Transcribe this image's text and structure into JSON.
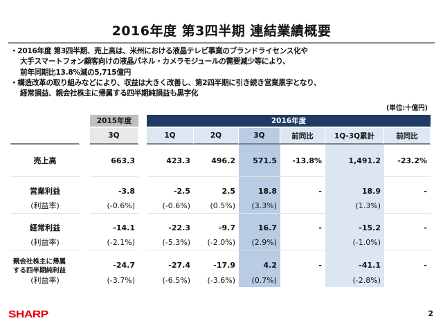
{
  "title": "2016年度 第3四半期 連結業績概要",
  "bullets": [
    [
      "・2016年度 第3四半期、売上高は、米州における液晶テレビ事業のブランドライセンス化や",
      "大手スマートフォン顧客向けの液晶パネル・カメラモジュールの需要減少等により、",
      "前年同期比13.8%減の5,715億円"
    ],
    [
      "・構造改革の取り組みなどにより、収益は大きく改善し、第2四半期に引き続き営業黒字となり、",
      "経常損益、親会社株主に帰属する四半期純損益も黒字化"
    ]
  ],
  "unit": "(単位:十億円)",
  "table": {
    "header_2015": "2015年度",
    "header_2016": "2016年度",
    "columns": [
      "3Q",
      "1Q",
      "2Q",
      "3Q",
      "前同比",
      "1Q-3Q累計",
      "前同比"
    ],
    "rows": [
      {
        "label": "売上高",
        "values": [
          "663.3",
          "423.3",
          "496.2",
          "571.5",
          "-13.8%",
          "1,491.2",
          "-23.2%"
        ]
      },
      {
        "label": "営業利益",
        "values": [
          "-3.8",
          "-2.5",
          "2.5",
          "18.8",
          "-",
          "18.9",
          "-"
        ],
        "sub_label": "(利益率)",
        "sub_values": [
          "(-0.6%)",
          "(-0.6%)",
          "(0.5%)",
          "(3.3%)",
          "",
          "(1.3%)",
          ""
        ]
      },
      {
        "label": "経常利益",
        "values": [
          "-14.1",
          "-22.3",
          "-9.7",
          "16.7",
          "-",
          "-15.2",
          "-"
        ],
        "sub_label": "(利益率)",
        "sub_values": [
          "(-2.1%)",
          "(-5.3%)",
          "(-2.0%)",
          "(2.9%)",
          "",
          "(-1.0%)",
          ""
        ]
      },
      {
        "label": "親会社株主に帰属する四半期純利益",
        "label_lines": [
          "親会社株主に帰属",
          "する四半期純利益"
        ],
        "values": [
          "-24.7",
          "-27.4",
          "-17.9",
          "4.2",
          "-",
          "-41.1",
          "-"
        ],
        "sub_label": "(利益率)",
        "sub_values": [
          "(-3.7%)",
          "(-6.5%)",
          "(-3.6%)",
          "(0.7%)",
          "",
          "(-2.8%)",
          ""
        ]
      }
    ]
  },
  "logo": "SHARP",
  "page_number": "2",
  "colors": {
    "header_dark": "#1f3a64",
    "header_light": "#dde6f2",
    "highlight_3q": "#b8cce4",
    "highlight_cum": "#dce6f2",
    "gray_2015": "#bfbfbf",
    "brand": "#e60012"
  }
}
